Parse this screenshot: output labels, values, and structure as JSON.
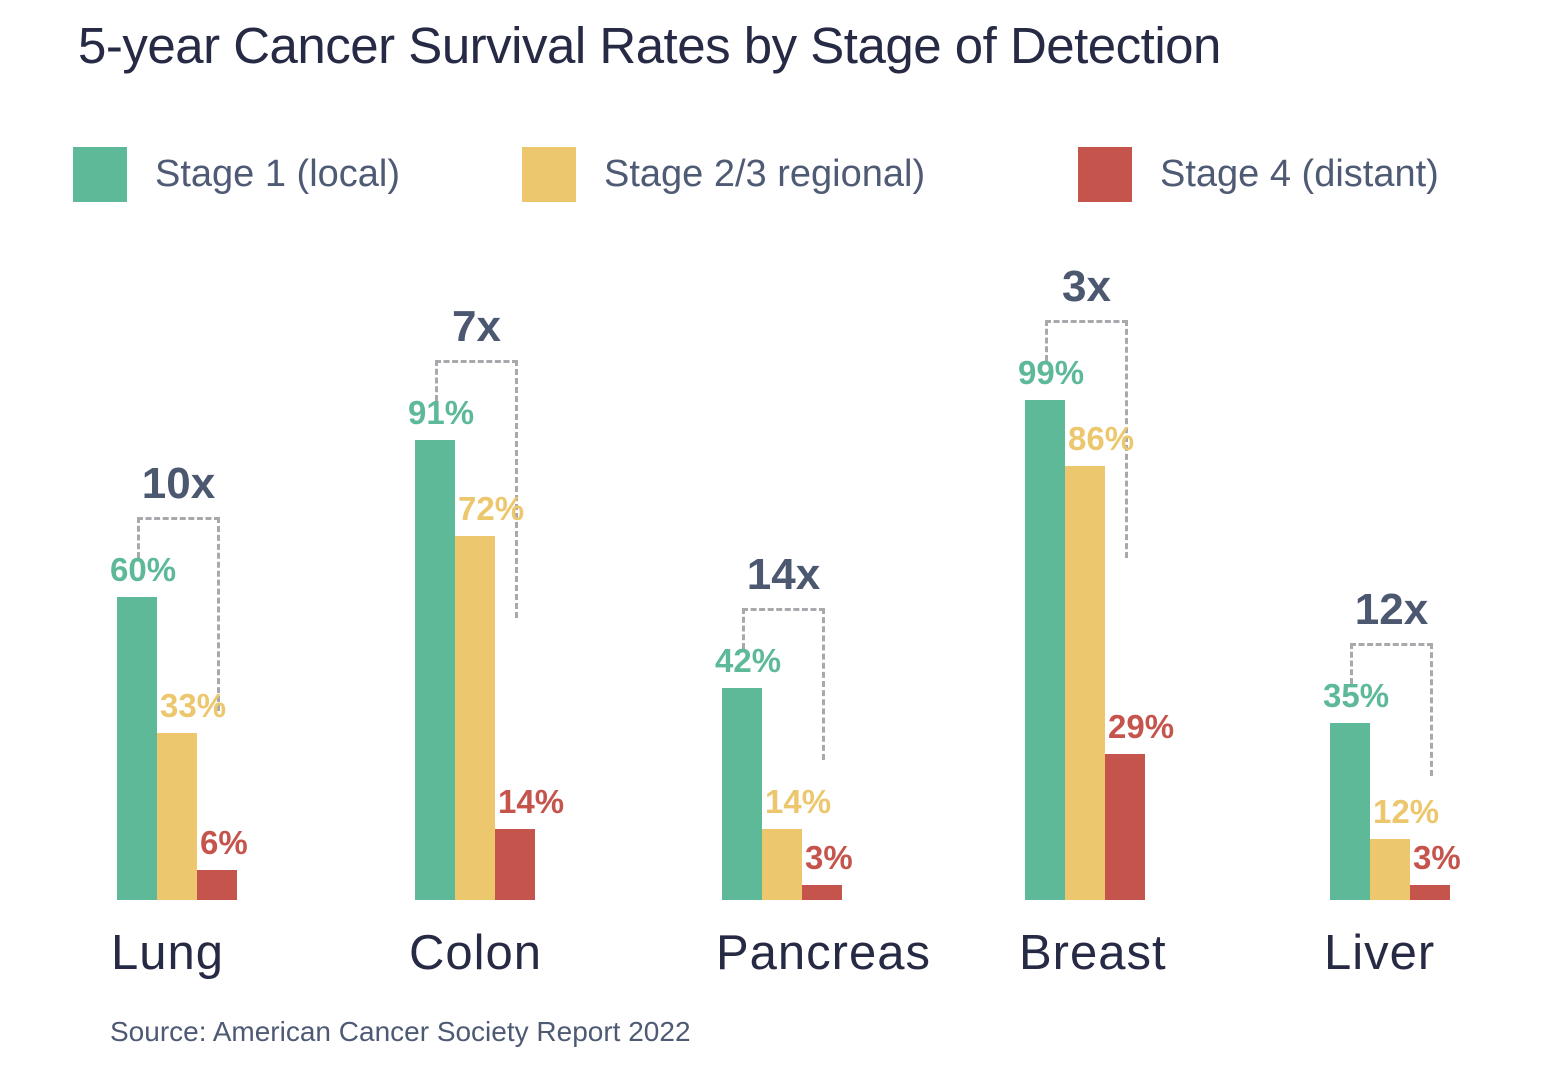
{
  "title": "5-year Cancer Survival Rates by Stage of Detection",
  "legend": [
    {
      "label": "Stage 1 (local)",
      "color": "#5EB998"
    },
    {
      "label": "Stage 2/3 regional)",
      "color": "#ECC76E"
    },
    {
      "label": "Stage 4 (distant)",
      "color": "#C5544D"
    }
  ],
  "source": "Source: American Cancer Society Report 2022",
  "colors": {
    "title_text": "#272A44",
    "legend_text": "#4F5B75",
    "multiplier_text": "#4C5870",
    "dashed_line": "#A7A9AC",
    "background": "#FFFFFF"
  },
  "chart_data": {
    "type": "bar",
    "title": "5-year Cancer Survival Rates by Stage of Detection",
    "categories": [
      "Lung",
      "Colon",
      "Pancreas",
      "Breast",
      "Liver"
    ],
    "series": [
      {
        "name": "Stage 1 (local)",
        "color": "#5EB998",
        "values": [
          60,
          91,
          42,
          99,
          35
        ]
      },
      {
        "name": "Stage 2/3 regional)",
        "color": "#ECC76E",
        "values": [
          33,
          72,
          14,
          86,
          12
        ]
      },
      {
        "name": "Stage 4 (distant)",
        "color": "#C5544D",
        "values": [
          6,
          14,
          3,
          29,
          3
        ]
      }
    ],
    "multipliers": [
      "10x",
      "7x",
      "14x",
      "3x",
      "12x"
    ],
    "unit": "%",
    "xlabel": "",
    "ylabel": "",
    "ylim": [
      0,
      100
    ],
    "grid": false,
    "axes_visible": false,
    "legend_position": "top",
    "value_labels": "above bars, colored as series",
    "source_note": "Source: American Cancer Society Report 2022"
  }
}
